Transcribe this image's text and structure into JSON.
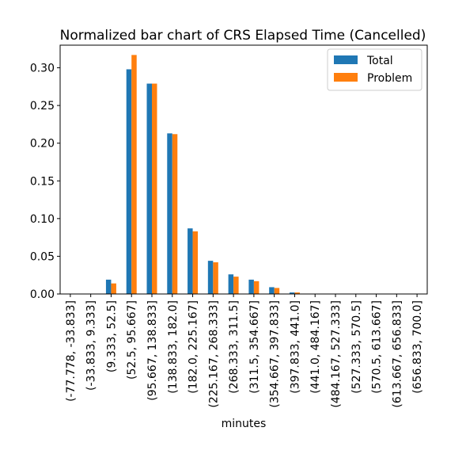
{
  "chart_data": {
    "type": "bar",
    "title": "Normalized bar chart of CRS Elapsed Time (Cancelled)",
    "xlabel": "minutes",
    "ylabel": "",
    "categories": [
      "(-77.778, -33.833]",
      "(-33.833, 9.333]",
      "(9.333, 52.5]",
      "(52.5, 95.667]",
      "(95.667, 138.833]",
      "(138.833, 182.0]",
      "(182.0, 225.167]",
      "(225.167, 268.333]",
      "(268.333, 311.5]",
      "(311.5, 354.667]",
      "(354.667, 397.833]",
      "(397.833, 441.0]",
      "(441.0, 484.167]",
      "(484.167, 527.333]",
      "(527.333, 570.5]",
      "(570.5, 613.667]",
      "(613.667, 656.833]",
      "(656.833, 700.0]"
    ],
    "series": [
      {
        "name": "Total",
        "color": "#1f77b4",
        "values": [
          0,
          0,
          0.019,
          0.298,
          0.279,
          0.213,
          0.087,
          0.044,
          0.026,
          0.019,
          0.009,
          0.002,
          0,
          0,
          0,
          0,
          0,
          0
        ]
      },
      {
        "name": "Problem",
        "color": "#ff7f0e",
        "values": [
          0,
          0,
          0.014,
          0.317,
          0.279,
          0.212,
          0.083,
          0.042,
          0.023,
          0.017,
          0.008,
          0.002,
          0,
          0,
          0,
          0,
          0,
          0
        ]
      }
    ],
    "yticks": [
      "0.00",
      "0.05",
      "0.10",
      "0.15",
      "0.20",
      "0.25",
      "0.30"
    ],
    "ylim": [
      0,
      0.33
    ],
    "grid": false,
    "legend_position": "top-right"
  }
}
